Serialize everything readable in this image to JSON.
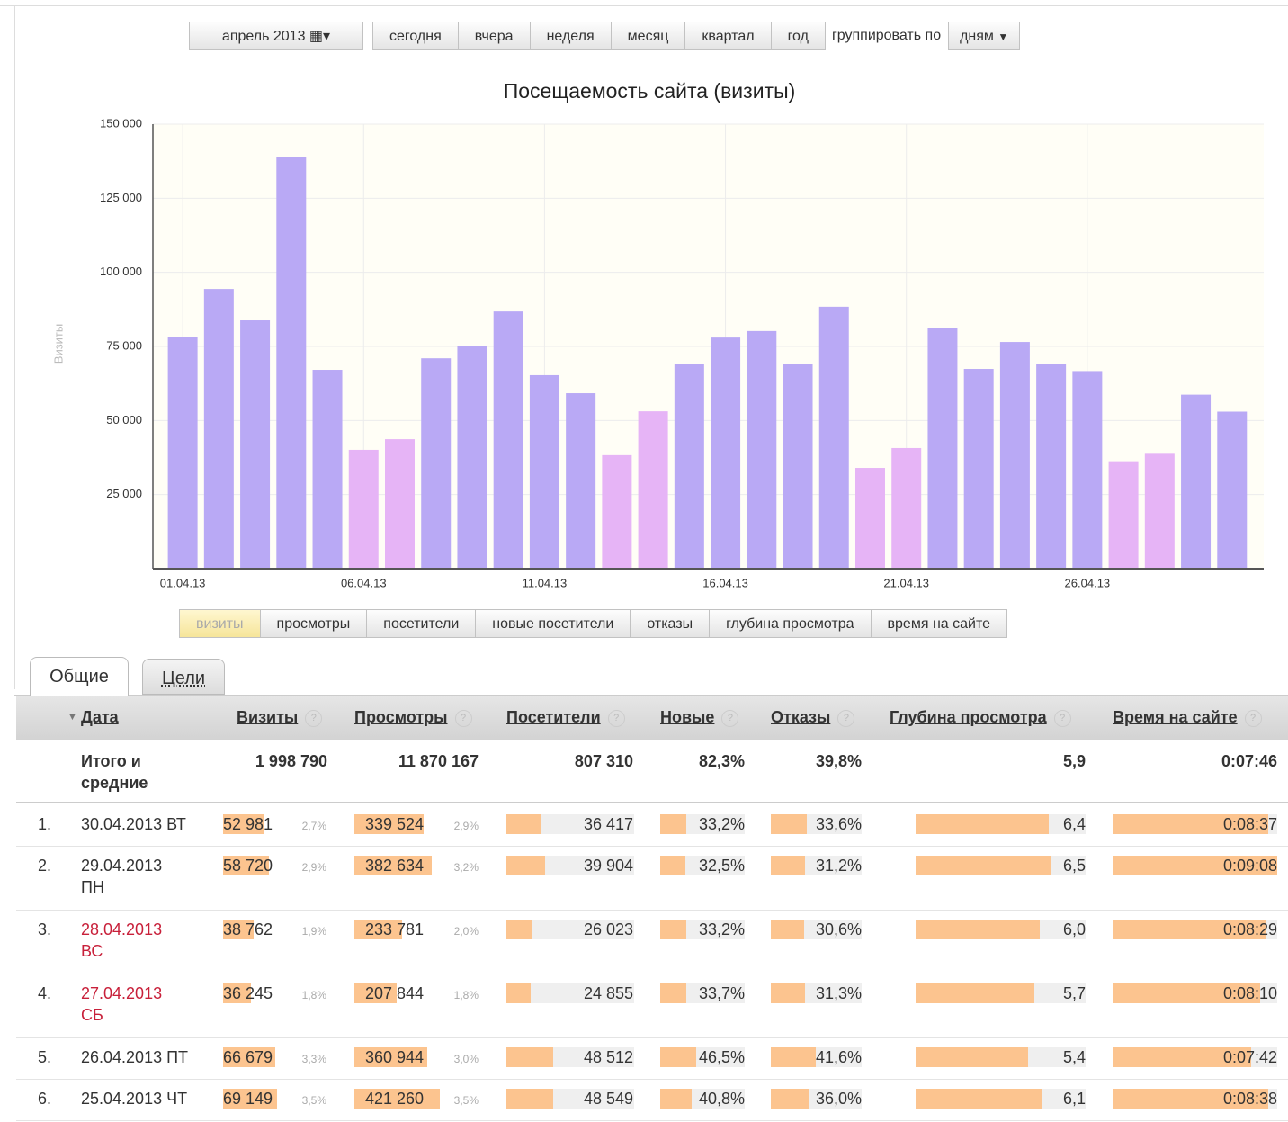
{
  "toolbar": {
    "period": "апрель 2013",
    "presets": [
      "сегодня",
      "вчера",
      "неделя",
      "месяц",
      "квартал",
      "год"
    ],
    "group_label": "группировать по",
    "group_value": "дням"
  },
  "chart_data": {
    "type": "bar",
    "title": "Посещаемость сайта (визиты)",
    "y_label": "Визиты",
    "categories": [
      "01.04.13",
      null,
      null,
      null,
      null,
      "06.04.13",
      null,
      null,
      null,
      null,
      "11.04.13",
      null,
      null,
      null,
      null,
      "16.04.13",
      null,
      null,
      null,
      null,
      "21.04.13",
      null,
      null,
      null,
      null,
      "26.04.13",
      null,
      null,
      null,
      null
    ],
    "values": [
      78300,
      94400,
      83800,
      139000,
      67100,
      40100,
      43700,
      71000,
      75300,
      86800,
      65300,
      59200,
      38300,
      53100,
      69200,
      78000,
      80200,
      69200,
      88400,
      34000,
      40700,
      81100,
      67400,
      76500,
      69149,
      66679,
      36245,
      38762,
      58720,
      52981
    ],
    "colors": [
      "#b9a9f5",
      "#b9a9f5",
      "#b9a9f5",
      "#b9a9f5",
      "#b9a9f5",
      "#e6b4f6",
      "#e6b4f6",
      "#b9a9f5",
      "#b9a9f5",
      "#b9a9f5",
      "#b9a9f5",
      "#b9a9f5",
      "#e6b4f6",
      "#e6b4f6",
      "#b9a9f5",
      "#b9a9f5",
      "#b9a9f5",
      "#b9a9f5",
      "#b9a9f5",
      "#e6b4f6",
      "#e6b4f6",
      "#b9a9f5",
      "#b9a9f5",
      "#b9a9f5",
      "#b9a9f5",
      "#b9a9f5",
      "#e6b4f6",
      "#e6b4f6",
      "#b9a9f5",
      "#b9a9f5"
    ],
    "ylim": [
      0,
      150000
    ],
    "yticks": [
      {
        "value": 25000,
        "label": "25 000"
      },
      {
        "value": 50000,
        "label": "50 000"
      },
      {
        "value": 75000,
        "label": "75 000"
      },
      {
        "value": 100000,
        "label": "100 000"
      },
      {
        "value": 125000,
        "label": "125 000"
      },
      {
        "value": 150000,
        "label": "150 000"
      }
    ],
    "grid": true
  },
  "metrics": {
    "items": [
      "визиты",
      "просмотры",
      "посетители",
      "новые посетители",
      "отказы",
      "глубина просмотра",
      "время на сайте"
    ],
    "active": 0
  },
  "tabs": {
    "items": [
      "Общие",
      "Цели"
    ],
    "active": 0
  },
  "table": {
    "help": "?",
    "columns": [
      "Дата",
      "Визиты",
      "Просмотры",
      "Посетители",
      "Новые",
      "Отказы",
      "Глубина просмотра",
      "Время на сайте"
    ],
    "totals": {
      "label": [
        "Итого и",
        "средние"
      ],
      "values": [
        "1 998 790",
        "11 870 167",
        "807 310",
        "82,3%",
        "39,8%",
        "5,9",
        "0:07:46"
      ]
    },
    "rows": [
      {
        "num": "1.",
        "date": [
          "30.04.2013 ВТ"
        ],
        "date_color": "#333333",
        "cells": [
          "52 981",
          "2,7%",
          "339 524",
          "2,9%",
          "36 417",
          "33,2%",
          "33,6%",
          "6,4",
          "0:08:37"
        ]
      },
      {
        "num": "2.",
        "date": [
          "29.04.2013",
          "ПН"
        ],
        "date_color": "#333333",
        "cells": [
          "58 720",
          "2,9%",
          "382 634",
          "3,2%",
          "39 904",
          "32,5%",
          "31,2%",
          "6,5",
          "0:09:08"
        ]
      },
      {
        "num": "3.",
        "date": [
          "28.04.2013",
          "ВС"
        ],
        "date_color": "#c8203a",
        "cells": [
          "38 762",
          "1,9%",
          "233 781",
          "2,0%",
          "26 023",
          "33,2%",
          "30,6%",
          "6,0",
          "0:08:29"
        ]
      },
      {
        "num": "4.",
        "date": [
          "27.04.2013",
          "СБ"
        ],
        "date_color": "#c8203a",
        "cells": [
          "36 245",
          "1,8%",
          "207 844",
          "1,8%",
          "24 855",
          "33,7%",
          "31,3%",
          "5,7",
          "0:08:10"
        ]
      },
      {
        "num": "5.",
        "date": [
          "26.04.2013 ПТ"
        ],
        "date_color": "#333333",
        "cells": [
          "66 679",
          "3,3%",
          "360 944",
          "3,0%",
          "48 512",
          "46,5%",
          "41,6%",
          "5,4",
          "0:07:42"
        ]
      },
      {
        "num": "6.",
        "date": [
          "25.04.2013 ЧТ"
        ],
        "date_color": "#333333",
        "cells": [
          "69 149",
          "3,5%",
          "421 260",
          "3,5%",
          "48 549",
          "40,8%",
          "36,0%",
          "6,1",
          "0:08:38"
        ]
      }
    ]
  }
}
